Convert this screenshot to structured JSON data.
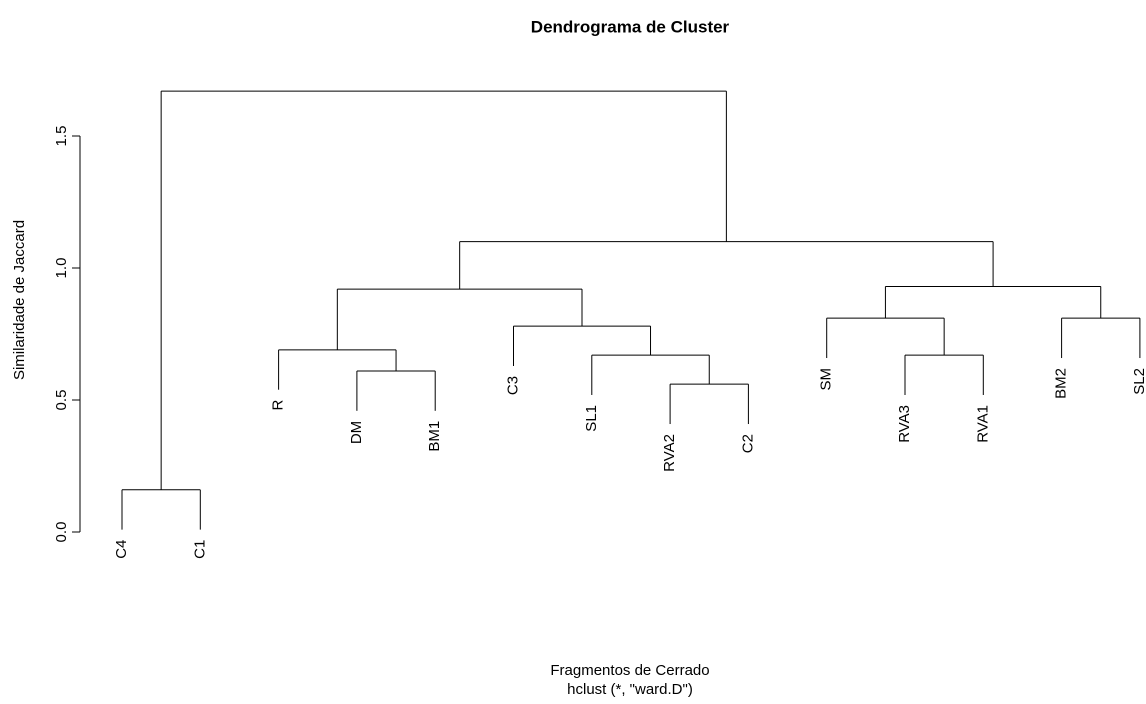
{
  "chart_data": {
    "type": "dendrogram",
    "title": "Dendrograma de Cluster",
    "xlabel": "Fragmentos de Cerrado",
    "subtitle": "hclust (*, \"ward.D\")",
    "ylabel": "Similaridade de Jaccard",
    "ylim": [
      0,
      1.5
    ],
    "yticks": [
      {
        "value": 0,
        "label": "0.0"
      },
      0.5,
      {
        "value": 1,
        "label": "1.0"
      },
      1.5
    ],
    "color": "#000000",
    "tree": {
      "height": 1.67,
      "children": [
        {
          "height": 0.16,
          "children": [
            {
              "label": "C4"
            },
            {
              "label": "C1"
            }
          ]
        },
        {
          "height": 1.1,
          "children": [
            {
              "height": 0.92,
              "children": [
                {
                  "height": 0.69,
                  "children": [
                    {
                      "label": "R"
                    },
                    {
                      "height": 0.61,
                      "children": [
                        {
                          "label": "DM"
                        },
                        {
                          "label": "BM1"
                        }
                      ]
                    }
                  ]
                },
                {
                  "height": 0.78,
                  "children": [
                    {
                      "label": "C3"
                    },
                    {
                      "height": 0.67,
                      "children": [
                        {
                          "label": "SL1"
                        },
                        {
                          "height": 0.56,
                          "children": [
                            {
                              "label": "RVA2"
                            },
                            {
                              "label": "C2"
                            }
                          ]
                        }
                      ]
                    }
                  ]
                }
              ]
            },
            {
              "height": 0.93,
              "children": [
                {
                  "height": 0.81,
                  "children": [
                    {
                      "label": "SM"
                    },
                    {
                      "height": 0.67,
                      "children": [
                        {
                          "label": "RVA3"
                        },
                        {
                          "label": "RVA1"
                        }
                      ]
                    }
                  ]
                },
                {
                  "height": 0.81,
                  "children": [
                    {
                      "label": "BM2"
                    },
                    {
                      "label": "SL2"
                    }
                  ]
                }
              ]
            }
          ]
        }
      ]
    }
  }
}
